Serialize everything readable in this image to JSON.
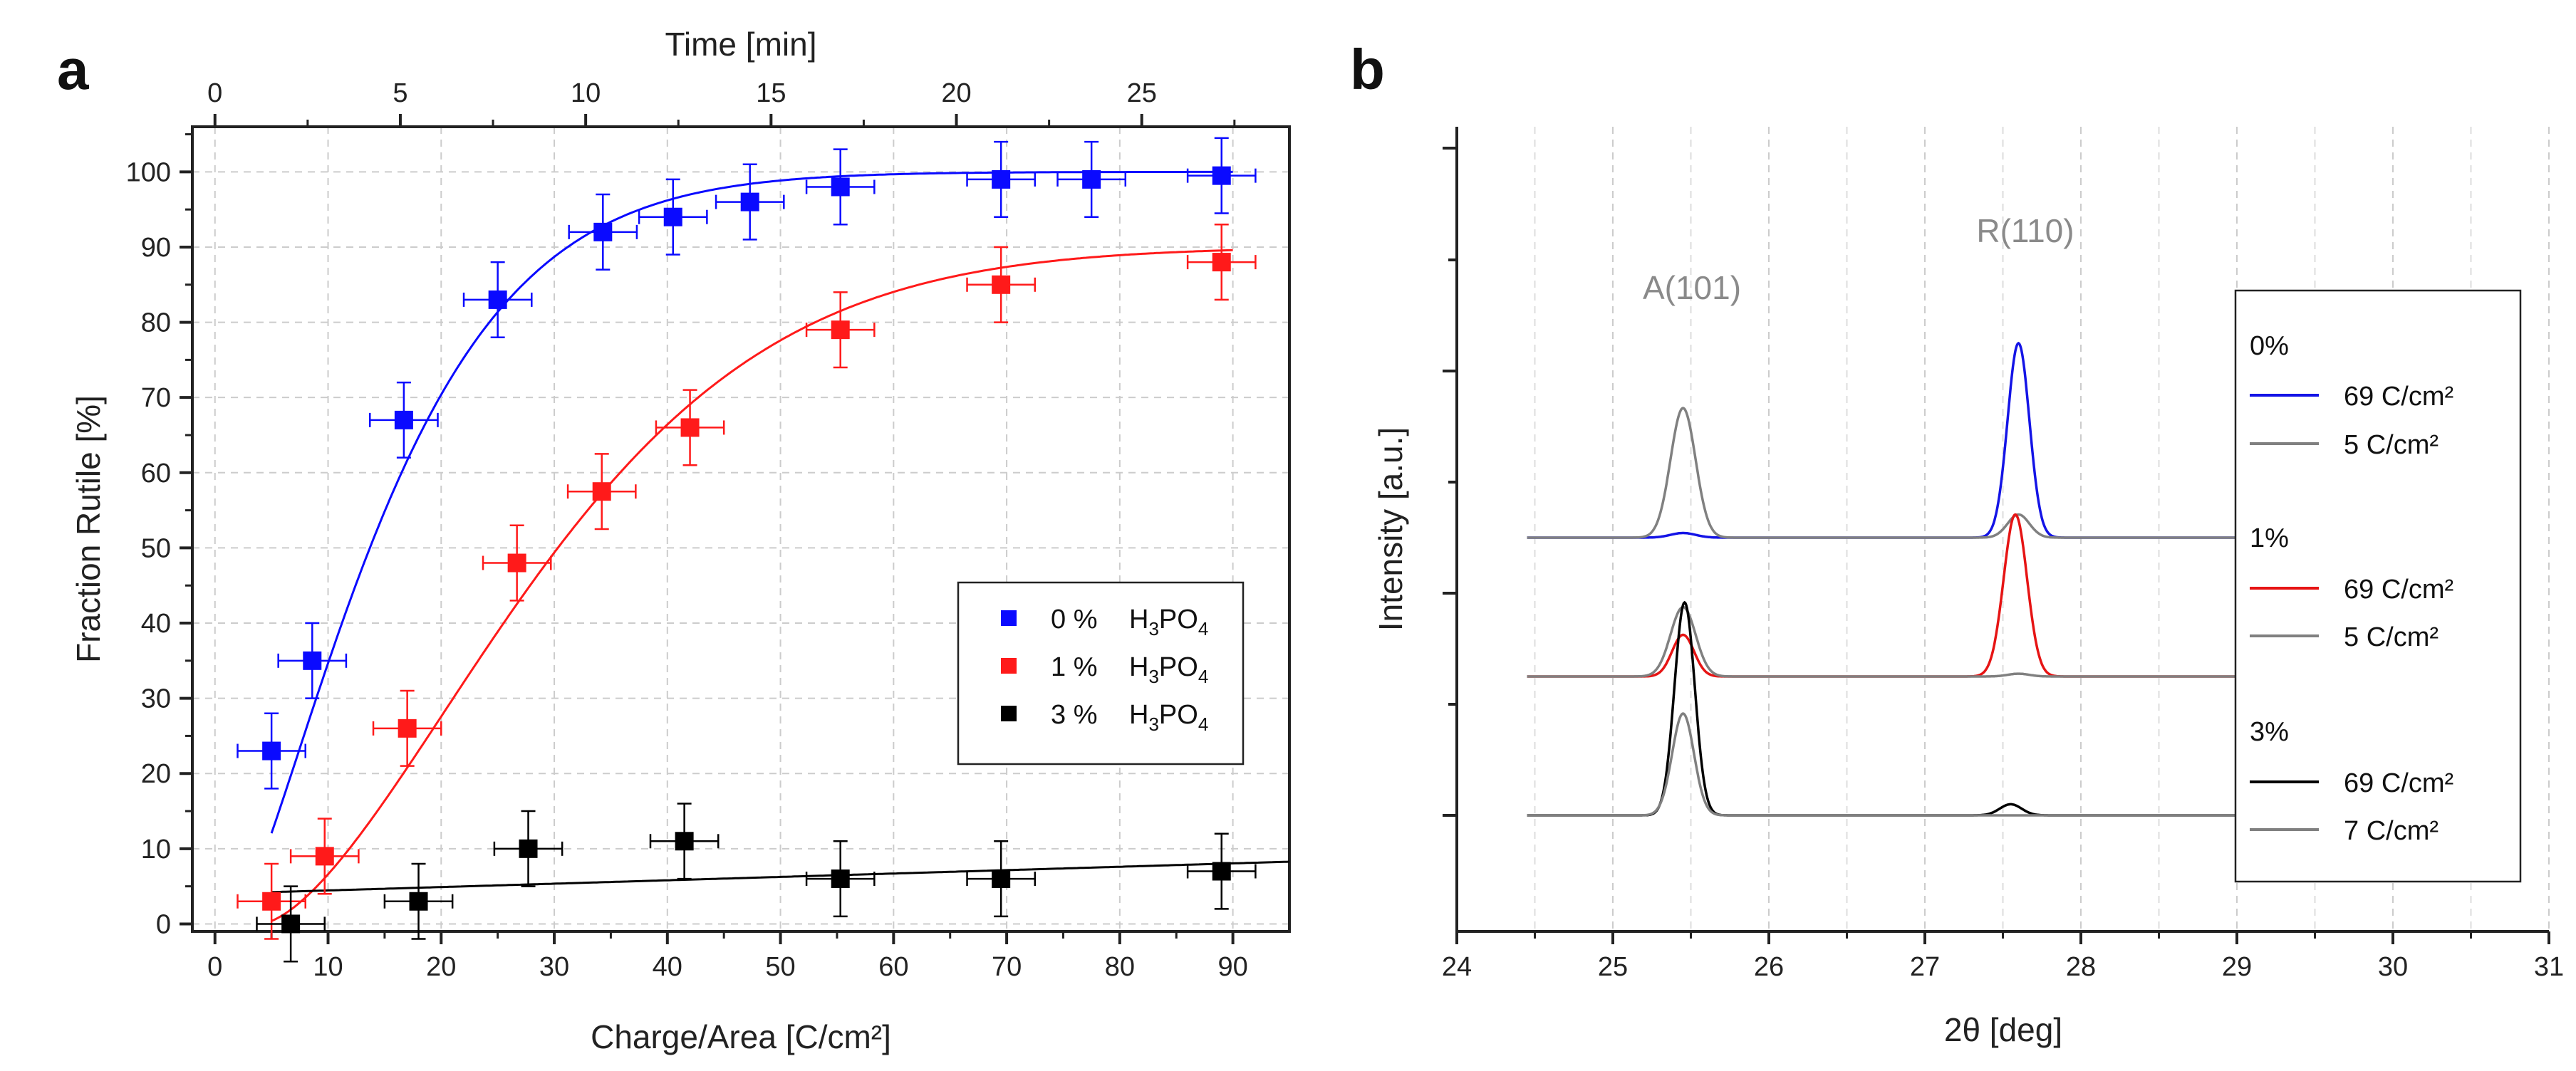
{
  "chart_data": [
    {
      "panel": "a",
      "type": "scatter",
      "xlabel": "Charge/Area [C/cm²]",
      "ylabel": "Fraction Rutile [%]",
      "top_xlabel": "Time [min]",
      "xlim": [
        -2,
        95
      ],
      "ylim": [
        -1,
        106
      ],
      "xticks": [
        0,
        10,
        20,
        30,
        40,
        50,
        60,
        70,
        80,
        90
      ],
      "yticks": [
        0,
        10,
        20,
        30,
        40,
        50,
        60,
        70,
        80,
        90,
        100
      ],
      "top_ticks": [
        0,
        5,
        10,
        15,
        20,
        25
      ],
      "grid": true,
      "legend_position": "right-middle",
      "series": [
        {
          "name": "0 %",
          "formula": "H3PO4",
          "color": "#0a0aff",
          "x": [
            5,
            8.6,
            16.7,
            25,
            34.3,
            40.5,
            47.3,
            55.3,
            69.5,
            77.5,
            89
          ],
          "y": [
            23,
            35,
            67,
            83,
            92,
            94,
            96,
            98,
            99,
            99,
            99.5
          ],
          "xerr": [
            3,
            3,
            3,
            3,
            3,
            3,
            3,
            3,
            3,
            3,
            3
          ],
          "yerr": [
            5,
            5,
            5,
            5,
            5,
            5,
            5,
            5,
            5,
            5,
            5
          ]
        },
        {
          "name": "1 %",
          "formula": "H3PO4",
          "color": "#ff1a1a",
          "x": [
            5,
            9.7,
            17,
            26.7,
            34.2,
            42,
            55.3,
            69.5,
            89
          ],
          "y": [
            3,
            9,
            26,
            48,
            57.5,
            66,
            79,
            85,
            88
          ],
          "xerr": [
            3,
            3,
            3,
            3,
            3,
            3,
            3,
            3,
            3
          ],
          "yerr": [
            5,
            5,
            5,
            5,
            5,
            5,
            5,
            5,
            5
          ]
        },
        {
          "name": "3 %",
          "formula": "H3PO4",
          "color": "#000000",
          "x": [
            6.7,
            18,
            27.7,
            41.5,
            55.3,
            69.5,
            89
          ],
          "y": [
            0,
            3,
            10,
            11,
            6,
            6,
            7
          ],
          "xerr": [
            3,
            3,
            3,
            3,
            3,
            3,
            3
          ],
          "yerr": [
            5,
            5,
            5,
            5,
            5,
            5,
            5
          ]
        }
      ]
    },
    {
      "panel": "b",
      "type": "line",
      "xlabel": "2θ [deg]",
      "ylabel": "Intensity [a.u.]",
      "xlim": [
        24,
        31
      ],
      "xticks": [
        24,
        25,
        26,
        27,
        28,
        29,
        30,
        31
      ],
      "grid": "vertical",
      "annotations": [
        {
          "text": "A(101)",
          "x": 25.45
        },
        {
          "text": "R(110)",
          "x": 27.58
        }
      ],
      "legend_position": "right",
      "groups": [
        {
          "label": "0%",
          "offset": 3.0,
          "series": [
            {
              "name": "69 C/cm²",
              "color": "#1414e6",
              "peaks": [
                {
                  "pos": 27.6,
                  "height": 2.1,
                  "width": 0.07
                },
                {
                  "pos": 25.45,
                  "height": 0.05,
                  "width": 0.08
                }
              ]
            },
            {
              "name": "5 C/cm²",
              "color": "#808080",
              "peaks": [
                {
                  "pos": 25.45,
                  "height": 1.4,
                  "width": 0.08
                },
                {
                  "pos": 27.6,
                  "height": 0.25,
                  "width": 0.07
                }
              ]
            }
          ]
        },
        {
          "label": "1%",
          "offset": 1.5,
          "series": [
            {
              "name": "69 C/cm²",
              "color": "#e61414",
              "peaks": [
                {
                  "pos": 27.58,
                  "height": 1.75,
                  "width": 0.075
                },
                {
                  "pos": 25.45,
                  "height": 0.45,
                  "width": 0.07
                }
              ]
            },
            {
              "name": "5 C/cm²",
              "color": "#808080",
              "peaks": [
                {
                  "pos": 25.45,
                  "height": 0.75,
                  "width": 0.08
                },
                {
                  "pos": 27.6,
                  "height": 0.03,
                  "width": 0.07
                }
              ]
            }
          ]
        },
        {
          "label": "3%",
          "offset": 0.0,
          "series": [
            {
              "name": "69 C/cm²",
              "color": "#000000",
              "peaks": [
                {
                  "pos": 25.46,
                  "height": 2.3,
                  "width": 0.065
                },
                {
                  "pos": 27.55,
                  "height": 0.12,
                  "width": 0.07
                }
              ]
            },
            {
              "name": "7 C/cm²",
              "color": "#808080",
              "peaks": [
                {
                  "pos": 25.45,
                  "height": 1.1,
                  "width": 0.07
                }
              ]
            }
          ]
        }
      ]
    }
  ]
}
